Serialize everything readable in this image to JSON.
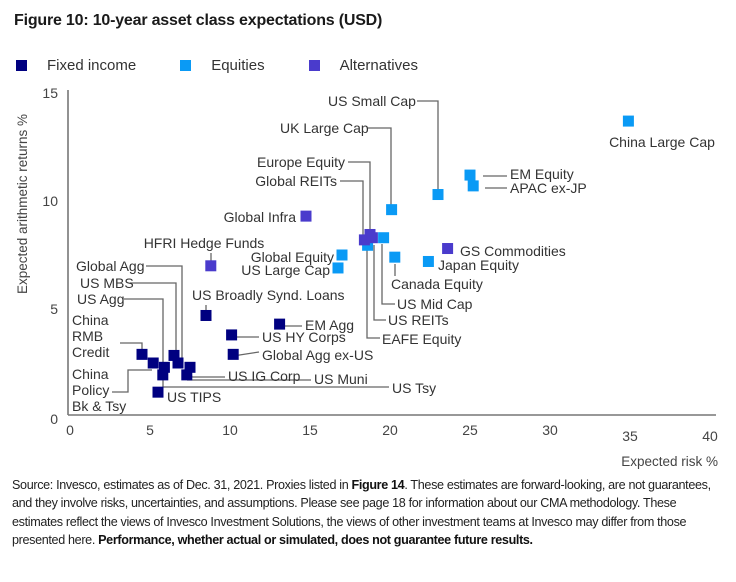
{
  "title": "Figure 10: 10-year asset class expectations (USD)",
  "legend": [
    {
      "label": "Fixed income",
      "color": "#000080"
    },
    {
      "label": "Equities",
      "color": "#0a9af5"
    },
    {
      "label": "Alternatives",
      "color": "#4a3bcc"
    }
  ],
  "chart_data": {
    "type": "scatter",
    "title": "Figure 10: 10-year asset class expectations (USD)",
    "xlabel": "Expected risk %",
    "ylabel": "Expected arithmetic returns %",
    "xlim": [
      0,
      40
    ],
    "ylim": [
      0,
      15
    ],
    "xticks": [
      "0",
      "5",
      "10",
      "15",
      "20",
      "25",
      "30",
      "35",
      "40"
    ],
    "yticks": [
      "0",
      "5",
      "10",
      "15"
    ],
    "grid": false,
    "legend_position": "top-left",
    "series": [
      {
        "name": "Fixed income",
        "color": "#000080",
        "points": [
          {
            "label": "US Broadly Synd. Loans",
            "x": 8.5,
            "y": 4.7
          },
          {
            "label": "EM Agg",
            "x": 13.1,
            "y": 4.3
          },
          {
            "label": "US HY Corps",
            "x": 10.1,
            "y": 3.8
          },
          {
            "label": "Global Agg ex-US",
            "x": 10.2,
            "y": 2.9
          },
          {
            "label": "China RMB Credit",
            "x": 4.5,
            "y": 2.9
          },
          {
            "label": "China Policy Bk & Tsy",
            "x": 5.2,
            "y": 2.5
          },
          {
            "label": "US Agg",
            "x": 5.9,
            "y": 2.3
          },
          {
            "label": "US Tsy",
            "x": 5.8,
            "y": 1.95
          },
          {
            "label": "US MBS",
            "x": 6.5,
            "y": 2.85
          },
          {
            "label": "Global Agg",
            "x": 6.75,
            "y": 2.5
          },
          {
            "label": "US IG Corp",
            "x": 7.5,
            "y": 2.3
          },
          {
            "label": "US Muni",
            "x": 7.3,
            "y": 1.95
          },
          {
            "label": "US TIPS",
            "x": 5.5,
            "y": 1.15
          }
        ]
      },
      {
        "name": "Equities",
        "color": "#0a9af5",
        "points": [
          {
            "label": "China Large Cap",
            "x": 34.9,
            "y": 13.7
          },
          {
            "label": "EM Equity",
            "x": 25.0,
            "y": 11.2
          },
          {
            "label": "APAC ex-JP",
            "x": 25.2,
            "y": 10.7
          },
          {
            "label": "US Small Cap",
            "x": 23.0,
            "y": 10.3
          },
          {
            "label": "UK Large Cap",
            "x": 20.1,
            "y": 9.6
          },
          {
            "label": "EAFE Equity",
            "x": 18.6,
            "y": 7.95
          },
          {
            "label": "US Mid Cap",
            "x": 19.6,
            "y": 8.3
          },
          {
            "label": "Canada Equity",
            "x": 20.3,
            "y": 7.4
          },
          {
            "label": "Japan Equity",
            "x": 22.4,
            "y": 7.2
          },
          {
            "label": "Global Equity",
            "x": 17.0,
            "y": 7.5
          },
          {
            "label": "US Large Cap",
            "x": 16.75,
            "y": 6.9
          }
        ]
      },
      {
        "name": "Alternatives",
        "color": "#4a3bcc",
        "points": [
          {
            "label": "Global Infra",
            "x": 14.75,
            "y": 9.3
          },
          {
            "label": "HFRI Hedge Funds",
            "x": 8.8,
            "y": 7.0
          },
          {
            "label": "GS Commodities",
            "x": 23.6,
            "y": 7.8
          },
          {
            "label": "Global REITs",
            "x": 18.4,
            "y": 8.2
          },
          {
            "label": "Europe Equity",
            "x": 18.75,
            "y": 8.45
          },
          {
            "label": "US REITs",
            "x": 18.9,
            "y": 8.3
          }
        ]
      }
    ]
  },
  "footer": {
    "part1": "Source: Invesco, estimates as of Dec. 31, 2021. Proxies listed in ",
    "bold1": "Figure 14",
    "part2": ". These estimates are forward-looking, are not guarantees, and they involve risks, uncertainties, and assumptions. Please see page 18 for information about our CMA methodology. These estimates reflect the views of Invesco Investment Solutions, the views of other investment teams at Invesco may differ from those presented here. ",
    "bold2": "Performance, whether actual or simulated, does not guarantee future results."
  }
}
